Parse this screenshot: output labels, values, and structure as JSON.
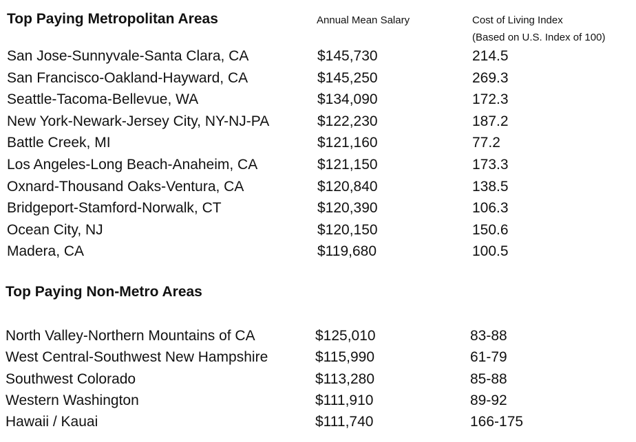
{
  "metro": {
    "title": "Top Paying Metropolitan Areas",
    "headers": [
      "Annual Mean Salary",
      "Cost of Living Index"
    ],
    "header_note": "(Based on U.S. Index of 100)",
    "rows": [
      [
        "San Jose-Sunnyvale-Santa Clara, CA",
        "$145,730",
        "214.5"
      ],
      [
        "San Francisco-Oakland-Hayward, CA",
        "$145,250",
        "269.3"
      ],
      [
        "Seattle-Tacoma-Bellevue, WA",
        "$134,090",
        "172.3"
      ],
      [
        "New York-Newark-Jersey City, NY-NJ-PA",
        "$122,230",
        "187.2"
      ],
      [
        "Battle Creek, MI",
        "$121,160",
        "77.2"
      ],
      [
        "Los Angeles-Long Beach-Anaheim, CA",
        "$121,150",
        "173.3"
      ],
      [
        "Oxnard-Thousand Oaks-Ventura, CA",
        "$120,840",
        "138.5"
      ],
      [
        "Bridgeport-Stamford-Norwalk, CT",
        "$120,390",
        "106.3"
      ],
      [
        "Ocean City, NJ",
        "$120,150",
        "150.6"
      ],
      [
        "Madera, CA",
        "$119,680",
        "100.5"
      ]
    ]
  },
  "nonmetro": {
    "title": "Top Paying Non-Metro Areas",
    "rows": [
      [
        "North Valley-Northern Mountains of CA",
        "$125,010",
        "83-88"
      ],
      [
        "West Central-Southwest New Hampshire",
        "$115,990",
        "61-79"
      ],
      [
        "Southwest Colorado",
        "$113,280",
        "85-88"
      ],
      [
        "Western Washington",
        "$111,910",
        "89-92"
      ],
      [
        "Hawaii / Kauai",
        "$111,740",
        "166-175"
      ]
    ]
  }
}
